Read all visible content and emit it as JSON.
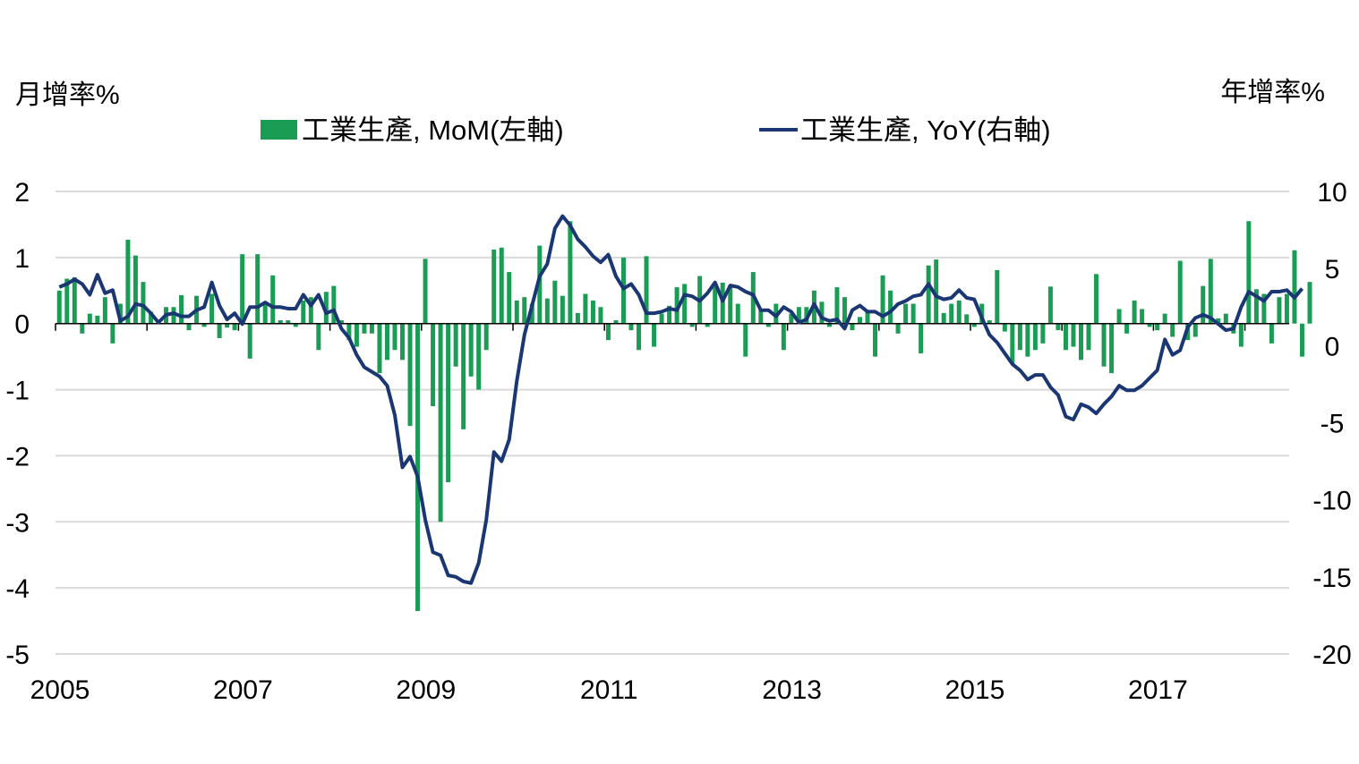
{
  "chart_data": {
    "type": "bar+line",
    "colors": {
      "mom": "#1a9c55",
      "yoy": "#1a3673",
      "grid": "#d9d9d9",
      "axis": "#000000"
    },
    "left_axis": {
      "label": "月增率%",
      "ylim": [
        -5,
        2
      ],
      "ticks": [
        "2",
        "1",
        "0",
        "-1",
        "-2",
        "-3",
        "-4",
        "-5"
      ]
    },
    "right_axis": {
      "label": "年增率%",
      "ylim": [
        -20,
        10
      ],
      "ticks": [
        "10",
        "5",
        "0",
        "-5",
        "-10",
        "-15",
        "-20"
      ]
    },
    "x_axis": {
      "ticks": [
        "2005",
        "2007",
        "2009",
        "2011",
        "2013",
        "2015",
        "2017"
      ]
    },
    "legend": {
      "position": "top",
      "mom_label": "工業生產, MoM(左軸)",
      "yoy_label": "工業生產, YoY(右軸)"
    },
    "start": "2005-01",
    "series": [
      {
        "name": "工業生產, MoM(左軸)",
        "type": "bar",
        "axis": "left",
        "values": [
          0.5,
          0.68,
          0.7,
          -0.15,
          0.15,
          0.12,
          0.4,
          -0.3,
          0.3,
          1.27,
          1.03,
          0.63,
          0.18,
          0.05,
          0.25,
          0.25,
          0.43,
          -0.1,
          0.42,
          -0.05,
          0.45,
          -0.22,
          -0.06,
          -0.1,
          1.05,
          -0.53,
          1.05,
          0.3,
          0.73,
          0.05,
          0.05,
          -0.05,
          0.35,
          0.4,
          -0.4,
          0.48,
          0.57,
          0.05,
          -0.25,
          -0.35,
          -0.15,
          -0.15,
          -0.75,
          -0.55,
          -0.4,
          -0.55,
          -1.55,
          -4.35,
          0.98,
          -1.25,
          -3.0,
          -2.4,
          -0.65,
          -1.6,
          -0.8,
          -1.0,
          -0.4,
          1.12,
          1.15,
          0.78,
          0.35,
          0.4,
          0.3,
          1.18,
          0.38,
          0.65,
          0.42,
          1.55,
          0.16,
          0.45,
          0.35,
          0.25,
          -0.25,
          0.05,
          1.0,
          -0.1,
          -0.4,
          1.02,
          -0.35,
          0.15,
          0.27,
          0.55,
          0.6,
          -0.05,
          0.72,
          -0.05,
          0.57,
          0.62,
          0.58,
          0.3,
          -0.5,
          0.78,
          0.2,
          -0.05,
          0.3,
          -0.4,
          0.15,
          0.25,
          0.25,
          0.5,
          0.33,
          -0.05,
          0.55,
          0.4,
          -0.1,
          0.1,
          0.2,
          -0.5,
          0.73,
          0.5,
          -0.15,
          0.3,
          0.3,
          -0.45,
          0.88,
          0.97,
          0.16,
          0.3,
          0.35,
          0.14,
          -0.05,
          0.3,
          0.05,
          0.81,
          -0.12,
          -0.6,
          -0.4,
          -0.5,
          -0.4,
          -0.3,
          0.56,
          -0.1,
          -0.4,
          -0.35,
          -0.55,
          -0.4,
          0.75,
          -0.65,
          -0.75,
          0.22,
          -0.15,
          0.35,
          0.22,
          -0.05,
          -0.1,
          0.15,
          -0.2,
          0.95,
          -0.25,
          -0.2,
          0.57,
          0.98,
          0.08,
          0.15,
          -0.15,
          -0.35,
          1.55,
          0.52,
          0.45,
          -0.3,
          0.4,
          0.45,
          1.11,
          -0.5,
          0.63
        ]
      },
      {
        "name": "工業生產, YoY(右軸)",
        "type": "line",
        "axis": "right",
        "values": [
          3.8,
          4.0,
          4.3,
          4.0,
          3.3,
          4.6,
          3.4,
          3.6,
          1.6,
          1.9,
          2.7,
          2.6,
          2.1,
          1.5,
          2.0,
          2.1,
          1.9,
          1.9,
          2.3,
          2.5,
          4.1,
          2.6,
          1.7,
          2.1,
          1.4,
          2.5,
          2.5,
          2.8,
          2.5,
          2.5,
          2.4,
          2.4,
          3.3,
          2.6,
          3.3,
          2.1,
          2.3,
          1.1,
          0.5,
          -0.6,
          -1.4,
          -1.7,
          -2.0,
          -2.6,
          -4.5,
          -7.9,
          -7.2,
          -8.5,
          -11.3,
          -13.4,
          -13.6,
          -14.9,
          -15.0,
          -15.3,
          -15.4,
          -14.1,
          -11.3,
          -6.9,
          -7.5,
          -6.1,
          -2.3,
          0.7,
          2.6,
          4.5,
          5.3,
          7.6,
          8.4,
          7.8,
          6.9,
          6.4,
          5.8,
          5.4,
          5.9,
          4.5,
          3.7,
          4.0,
          3.3,
          2.1,
          2.1,
          2.2,
          2.4,
          2.3,
          3.3,
          3.2,
          2.9,
          3.4,
          4.1,
          2.9,
          3.9,
          3.8,
          3.5,
          3.3,
          2.3,
          2.3,
          1.9,
          2.5,
          2.2,
          1.5,
          1.7,
          2.7,
          1.8,
          1.6,
          1.7,
          1.1,
          2.3,
          2.6,
          2.2,
          2.2,
          1.9,
          2.2,
          2.7,
          2.9,
          3.2,
          3.3,
          4.0,
          3.2,
          3.0,
          3.1,
          3.6,
          3.1,
          3.0,
          1.8,
          0.7,
          0.2,
          -0.5,
          -1.2,
          -1.6,
          -2.2,
          -1.9,
          -1.9,
          -2.7,
          -3.2,
          -4.6,
          -4.8,
          -3.8,
          -4.0,
          -4.4,
          -3.8,
          -3.3,
          -2.6,
          -2.9,
          -2.9,
          -2.6,
          -2.1,
          -1.6,
          0.4,
          -0.6,
          -0.3,
          1.2,
          1.8,
          2.0,
          1.8,
          1.4,
          1.0,
          1.1,
          2.5,
          3.5,
          3.2,
          2.9,
          3.5,
          3.5,
          3.6,
          3.1,
          3.7
        ]
      }
    ]
  }
}
